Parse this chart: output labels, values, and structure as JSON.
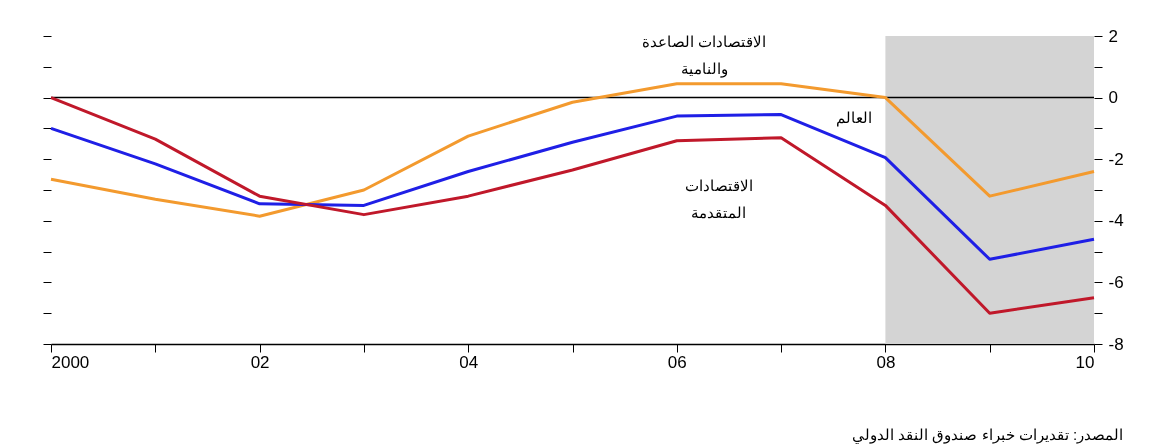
{
  "chart_data": {
    "type": "line",
    "x": [
      2000,
      2001,
      2002,
      2003,
      2004,
      2005,
      2006,
      2007,
      2008,
      2009,
      2010
    ],
    "series": [
      {
        "name": "الاقتصادات الصاعدة\nوالنامية",
        "color": "#f39a2e",
        "values": [
          -2.65,
          -3.3,
          -3.85,
          -3.0,
          -1.25,
          -0.15,
          0.45,
          0.45,
          0,
          -3.2,
          -2.4
        ]
      },
      {
        "name": "العالم",
        "color": "#1f1fe6",
        "values": [
          -1.0,
          -2.15,
          -3.45,
          -3.5,
          -2.4,
          -1.45,
          -0.6,
          -0.55,
          -1.95,
          -5.25,
          -4.6
        ]
      },
      {
        "name": "الاقتصادات\nالمتقدمة",
        "color": "#c0182a",
        "values": [
          0,
          -1.35,
          -3.2,
          -3.8,
          -3.2,
          -2.35,
          -1.4,
          -1.3,
          -3.5,
          -7.0,
          -6.5
        ]
      }
    ],
    "xlim": [
      2000,
      2010
    ],
    "xticks": [
      {
        "value": 2000,
        "label": "2000"
      },
      {
        "value": 2001,
        "label": null
      },
      {
        "value": 2002,
        "label": "02"
      },
      {
        "value": 2003,
        "label": null
      },
      {
        "value": 2004,
        "label": "04"
      },
      {
        "value": 2005,
        "label": null
      },
      {
        "value": 2006,
        "label": "06"
      },
      {
        "value": 2007,
        "label": null
      },
      {
        "value": 2008,
        "label": "08"
      },
      {
        "value": 2009,
        "label": null
      },
      {
        "value": 2010,
        "label": "10"
      }
    ],
    "ylim": [
      -8,
      2
    ],
    "yticks": [
      {
        "value": -8,
        "label": "-8"
      },
      {
        "value": -7,
        "label": null
      },
      {
        "value": -6,
        "label": "-6"
      },
      {
        "value": -5,
        "label": null
      },
      {
        "value": -4,
        "label": "-4"
      },
      {
        "value": -3,
        "label": null
      },
      {
        "value": -2,
        "label": "-2"
      },
      {
        "value": -1,
        "label": null
      },
      {
        "value": 0,
        "label": "0"
      },
      {
        "value": 1,
        "label": null
      },
      {
        "value": 2,
        "label": "2"
      }
    ],
    "ref_lines": [
      {
        "axis": "y",
        "value": 0,
        "color": "#000000"
      }
    ],
    "bands": [
      {
        "axis": "x",
        "from": 2008,
        "to": 2010,
        "color": "#d4d4d4"
      }
    ],
    "annotations": [
      "المصدر: تقديرات خبراء صندوق النقد الدولي"
    ],
    "legend": false,
    "grid": false
  }
}
